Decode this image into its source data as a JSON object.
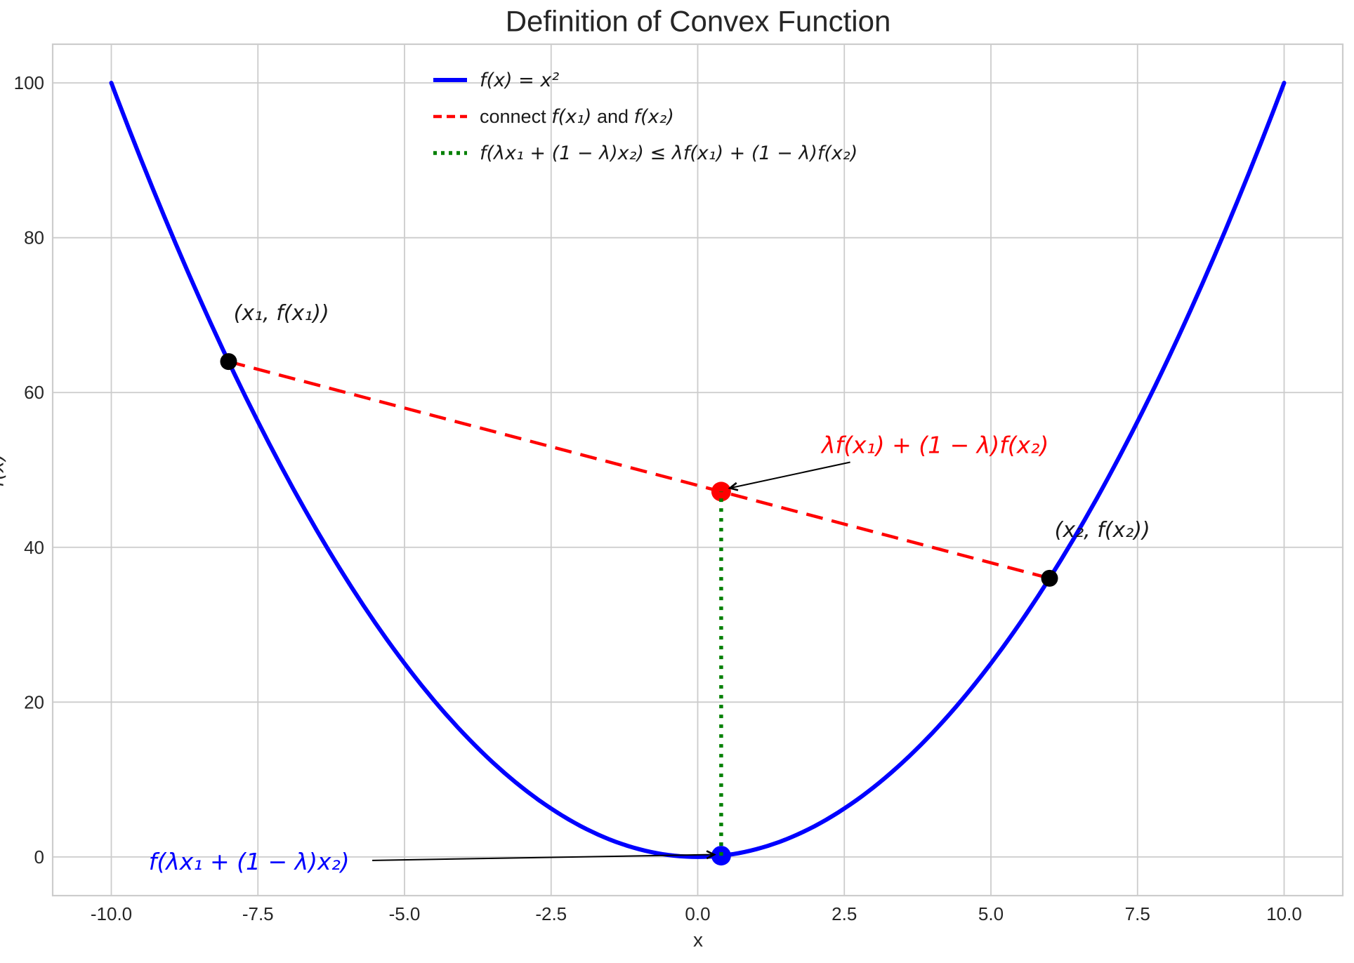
{
  "chart_data": {
    "type": "line",
    "title": "Definition of Convex Function",
    "xlabel": "x",
    "ylabel": "f(x)",
    "xlim": [
      -11,
      11
    ],
    "ylim": [
      -5,
      105
    ],
    "grid": true,
    "background": "#ffffff",
    "grid_color": "#cccccc",
    "text_color": "#262626",
    "xticks": [
      {
        "v": -10,
        "label": "-10.0"
      },
      {
        "v": -7.5,
        "label": "-7.5"
      },
      {
        "v": -5,
        "label": "-5.0"
      },
      {
        "v": -2.5,
        "label": "-2.5"
      },
      {
        "v": 0,
        "label": "0.0"
      },
      {
        "v": 2.5,
        "label": "2.5"
      },
      {
        "v": 5,
        "label": "5.0"
      },
      {
        "v": 7.5,
        "label": "7.5"
      },
      {
        "v": 10,
        "label": "10.0"
      }
    ],
    "yticks": [
      {
        "v": 0,
        "label": "0"
      },
      {
        "v": 20,
        "label": "20"
      },
      {
        "v": 40,
        "label": "40"
      },
      {
        "v": 60,
        "label": "60"
      },
      {
        "v": 80,
        "label": "80"
      },
      {
        "v": 100,
        "label": "100"
      }
    ],
    "curve": {
      "label": "f(x) = x²",
      "expr": "x^2",
      "x_from": -10,
      "x_to": 10,
      "color": "#0000ff",
      "width": 6
    },
    "params": {
      "x1": -8,
      "x2": 6,
      "lambda": 0.4,
      "f_x1": 64,
      "f_x2": 36,
      "x_mix": 0.4,
      "f_x_mix": 0.16,
      "chord_y_mix": 47.2
    },
    "chord": {
      "from": [
        -8,
        64
      ],
      "to": [
        6,
        36
      ],
      "color": "#ff0000",
      "dash": "24 13",
      "width": 4.5
    },
    "inequality_segment": {
      "x": 0.4,
      "y_from": 0.16,
      "y_to": 47.2,
      "color": "#008000",
      "dash": "5 9",
      "width": 5.5
    },
    "points": [
      {
        "name": "point-x1",
        "x": -8,
        "y": 64,
        "color": "#000000",
        "r": 12
      },
      {
        "name": "point-x2",
        "x": 6,
        "y": 36,
        "color": "#000000",
        "r": 12
      },
      {
        "name": "point-chord-mix",
        "x": 0.4,
        "y": 47.2,
        "color": "#ff0000",
        "r": 14
      },
      {
        "name": "point-curve-mix",
        "x": 0.4,
        "y": 0.16,
        "color": "#0000ff",
        "r": 14
      }
    ],
    "point_labels": [
      {
        "text": "(x₁, f(x₁))",
        "x": -7.1,
        "y": 70.2,
        "color": "#1a1a1a"
      },
      {
        "text": "(x₂, f(x₂))",
        "x": 6.9,
        "y": 42.2,
        "color": "#1a1a1a"
      }
    ],
    "annotations": [
      {
        "name": "chord-value-annotation",
        "text": "λf(x₁) + (1 − λ)f(x₂)",
        "color": "#ff0000",
        "x": 4.05,
        "y": 53.2,
        "arrow_from": [
          2.6,
          51.0
        ],
        "arrow_to": [
          0.55,
          47.65
        ]
      },
      {
        "name": "curve-value-annotation",
        "text": "f(λx₁ + (1 − λ)x₂)",
        "color": "#0000ff",
        "x": -7.65,
        "y": -0.6,
        "arrow_from": [
          -5.55,
          -0.45
        ],
        "arrow_to": [
          0.28,
          0.3
        ]
      }
    ],
    "legend": {
      "rows": [
        {
          "color": "#0000ff",
          "dash": "",
          "width": 6,
          "segments": [
            {
              "text": "f(x) = x²",
              "italic": true
            }
          ]
        },
        {
          "color": "#ff0000",
          "dash": "12 7",
          "width": 4.5,
          "segments": [
            {
              "text": "connect ",
              "italic": false
            },
            {
              "text": "f(x₁)",
              "italic": true
            },
            {
              "text": " and ",
              "italic": false
            },
            {
              "text": "f(x₂)",
              "italic": true
            }
          ]
        },
        {
          "color": "#008000",
          "dash": "5 6",
          "width": 5.5,
          "segments": [
            {
              "text": "f(λx₁ + (1 − λ)x₂) ≤ λf(x₁) + (1 − λ)f(x₂)",
              "italic": true
            }
          ]
        }
      ]
    }
  }
}
